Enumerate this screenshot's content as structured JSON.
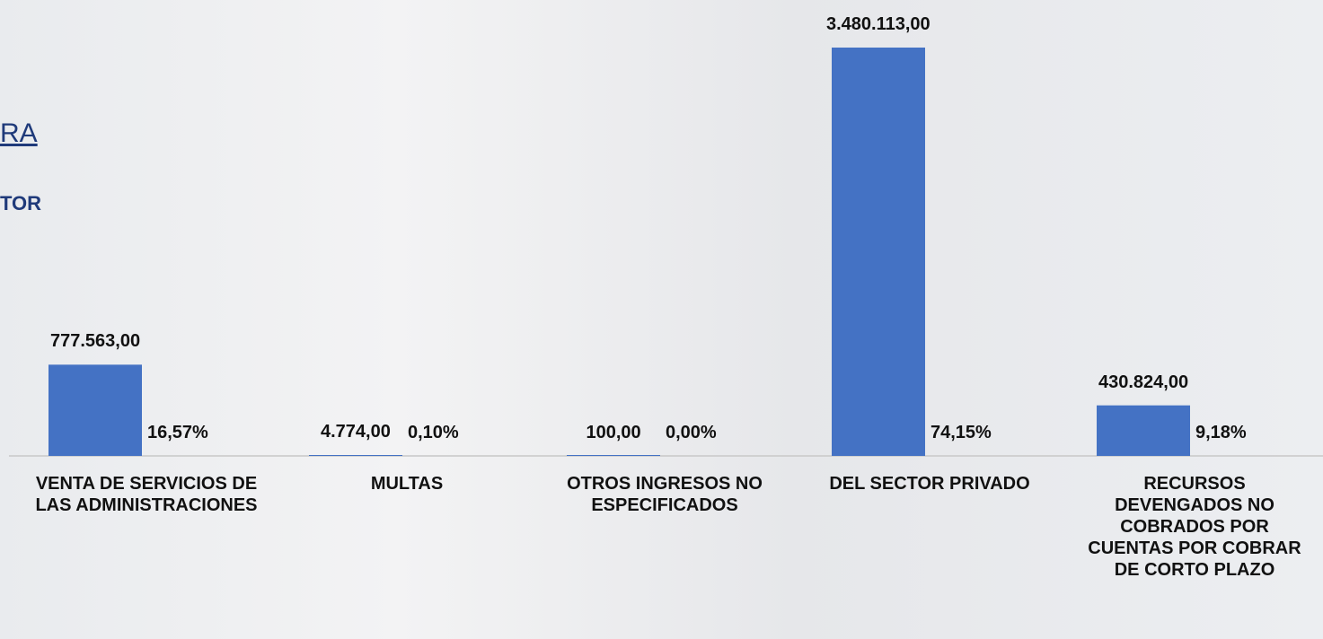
{
  "chart_data": {
    "type": "bar",
    "title": "RA",
    "subtitle": "TOR",
    "categories": [
      "VENTA DE SERVICIOS DE LAS ADMINISTRACIONES",
      "MULTAS",
      "OTROS INGRESOS NO ESPECIFICADOS",
      "DEL SECTOR PRIVADO",
      "RECURSOS DEVENGADOS NO COBRADOS POR CUENTAS POR COBRAR DE CORTO PLAZO"
    ],
    "values": [
      777563,
      4774,
      100,
      3480113,
      430824
    ],
    "value_labels": [
      "777.563,00",
      "4.774,00",
      "100,00",
      "3.480.113,00",
      "430.824,00"
    ],
    "percentages": [
      16.57,
      0.1,
      0.0,
      74.15,
      9.18
    ],
    "percent_labels": [
      "16,57%",
      "0,10%",
      "0,00%",
      "74,15%",
      "9,18%"
    ],
    "color": "#4472c4"
  }
}
